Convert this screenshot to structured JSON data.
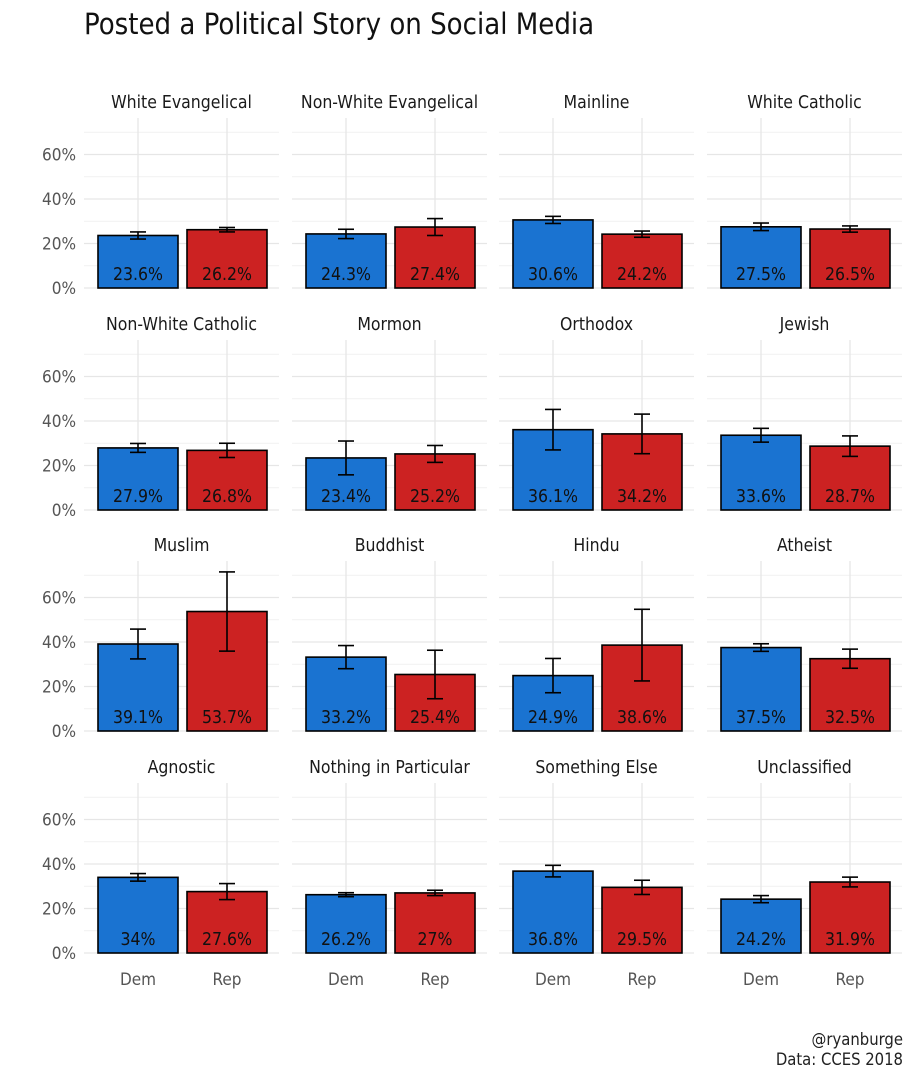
{
  "chart_data": {
    "type": "bar",
    "title": "Posted a Political Story on Social Media",
    "categories": [
      "Dem",
      "Rep"
    ],
    "ylim": [
      0,
      0.75
    ],
    "y_ticks": [
      0,
      0.2,
      0.4,
      0.6
    ],
    "y_tick_labels": [
      "0%",
      "20%",
      "40%",
      "60%"
    ],
    "colors": {
      "Dem": "#1a73d1",
      "Rep": "#cc2222"
    },
    "grid": true,
    "caption": [
      "@ryanburge",
      "Data: CCES 2018"
    ],
    "panels": [
      {
        "facet": "White Evangelical",
        "values": [
          0.236,
          0.262
        ],
        "labels": [
          "23.6%",
          "26.2%"
        ],
        "err_low": [
          0.22,
          0.252
        ],
        "err_high": [
          0.252,
          0.272
        ]
      },
      {
        "facet": "Non-White Evangelical",
        "values": [
          0.243,
          0.274
        ],
        "labels": [
          "24.3%",
          "27.4%"
        ],
        "err_low": [
          0.222,
          0.236
        ],
        "err_high": [
          0.264,
          0.312
        ]
      },
      {
        "facet": "Mainline",
        "values": [
          0.306,
          0.242
        ],
        "labels": [
          "30.6%",
          "24.2%"
        ],
        "err_low": [
          0.29,
          0.228
        ],
        "err_high": [
          0.322,
          0.256
        ]
      },
      {
        "facet": "White Catholic",
        "values": [
          0.275,
          0.265
        ],
        "labels": [
          "27.5%",
          "26.5%"
        ],
        "err_low": [
          0.258,
          0.251
        ],
        "err_high": [
          0.292,
          0.279
        ]
      },
      {
        "facet": "Non-White Catholic",
        "values": [
          0.279,
          0.268
        ],
        "labels": [
          "27.9%",
          "26.8%"
        ],
        "err_low": [
          0.259,
          0.236
        ],
        "err_high": [
          0.299,
          0.3
        ]
      },
      {
        "facet": "Mormon",
        "values": [
          0.234,
          0.252
        ],
        "labels": [
          "23.4%",
          "25.2%"
        ],
        "err_low": [
          0.158,
          0.214
        ],
        "err_high": [
          0.31,
          0.29
        ]
      },
      {
        "facet": "Orthodox",
        "values": [
          0.361,
          0.342
        ],
        "labels": [
          "36.1%",
          "34.2%"
        ],
        "err_low": [
          0.27,
          0.253
        ],
        "err_high": [
          0.452,
          0.431
        ]
      },
      {
        "facet": "Jewish",
        "values": [
          0.336,
          0.287
        ],
        "labels": [
          "33.6%",
          "28.7%"
        ],
        "err_low": [
          0.305,
          0.241
        ],
        "err_high": [
          0.367,
          0.333
        ]
      },
      {
        "facet": "Muslim",
        "values": [
          0.391,
          0.537
        ],
        "labels": [
          "39.1%",
          "53.7%"
        ],
        "err_low": [
          0.324,
          0.359
        ],
        "err_high": [
          0.458,
          0.715
        ]
      },
      {
        "facet": "Buddhist",
        "values": [
          0.332,
          0.254
        ],
        "labels": [
          "33.2%",
          "25.4%"
        ],
        "err_low": [
          0.28,
          0.145
        ],
        "err_high": [
          0.384,
          0.363
        ]
      },
      {
        "facet": "Hindu",
        "values": [
          0.249,
          0.386
        ],
        "labels": [
          "24.9%",
          "38.6%"
        ],
        "err_low": [
          0.172,
          0.225
        ],
        "err_high": [
          0.326,
          0.547
        ]
      },
      {
        "facet": "Atheist",
        "values": [
          0.375,
          0.325
        ],
        "labels": [
          "37.5%",
          "32.5%"
        ],
        "err_low": [
          0.358,
          0.282
        ],
        "err_high": [
          0.392,
          0.368
        ]
      },
      {
        "facet": "Agnostic",
        "values": [
          0.34,
          0.276
        ],
        "labels": [
          "34%",
          "27.6%"
        ],
        "err_low": [
          0.323,
          0.24
        ],
        "err_high": [
          0.357,
          0.312
        ]
      },
      {
        "facet": "Nothing in Particular",
        "values": [
          0.262,
          0.27
        ],
        "labels": [
          "26.2%",
          "27%"
        ],
        "err_low": [
          0.253,
          0.258
        ],
        "err_high": [
          0.271,
          0.282
        ]
      },
      {
        "facet": "Something Else",
        "values": [
          0.368,
          0.295
        ],
        "labels": [
          "36.8%",
          "29.5%"
        ],
        "err_low": [
          0.342,
          0.263
        ],
        "err_high": [
          0.394,
          0.327
        ]
      },
      {
        "facet": "Unclassified",
        "values": [
          0.242,
          0.319
        ],
        "labels": [
          "24.2%",
          "31.9%"
        ],
        "err_low": [
          0.226,
          0.297
        ],
        "err_high": [
          0.258,
          0.341
        ]
      }
    ]
  }
}
